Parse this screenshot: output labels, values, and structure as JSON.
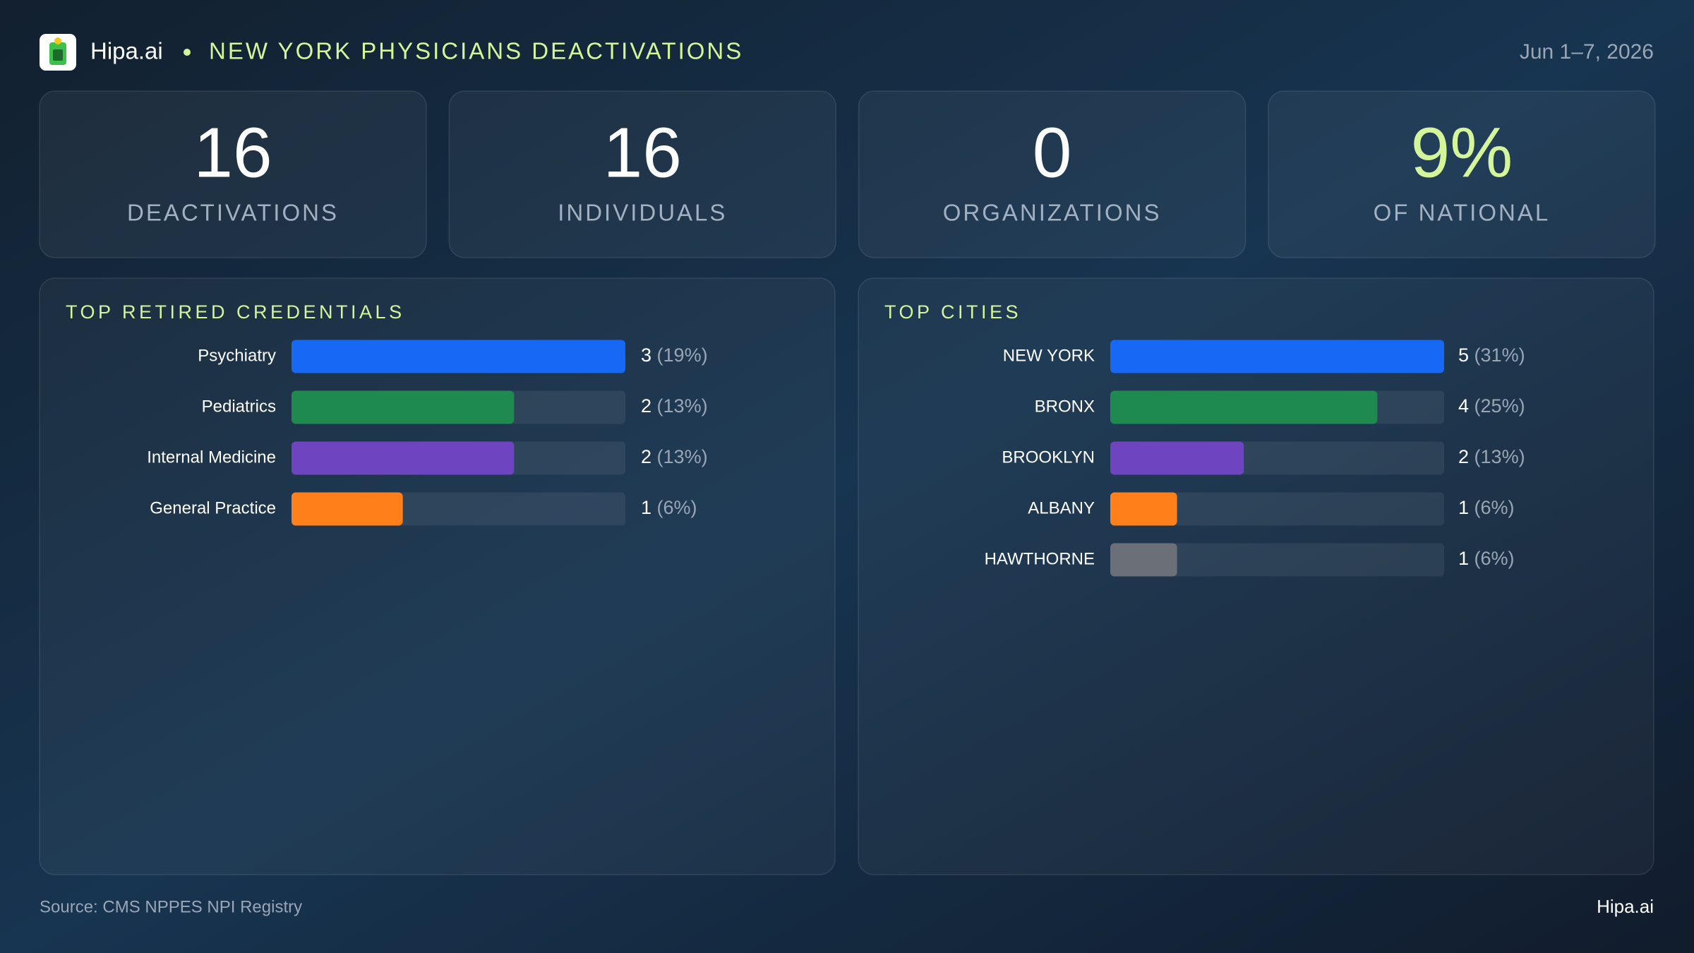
{
  "header": {
    "brand": "Hipa.ai",
    "title": "NEW YORK PHYSICIANS DEACTIVATIONS",
    "date": "Jun 1–7, 2026"
  },
  "kpis": [
    {
      "value": 16,
      "label": "DEACTIVATIONS",
      "color": "#ffffff"
    },
    {
      "value": 16,
      "label": "INDIVIDUALS",
      "color": "#ffffff"
    },
    {
      "value": 0,
      "label": "ORGANIZATIONS",
      "color": "#ffffff"
    },
    {
      "value": "9%",
      "label": "OF NATIONAL",
      "color": "#d4f59a"
    }
  ],
  "chart_data": [
    {
      "type": "bar",
      "title": "TOP RETIRED CREDENTIALS",
      "categories": [
        "Psychiatry",
        "Pediatrics",
        "Internal Medicine",
        "General Practice"
      ],
      "values": [
        3,
        2,
        2,
        1
      ],
      "share_labels": [
        "(19%)",
        "(13%)",
        "(13%)",
        "(6%)"
      ],
      "colors": [
        "#1668f5",
        "#1e8a4f",
        "#6e44c0",
        "#ff7f1a"
      ],
      "xlim": [
        0,
        3
      ]
    },
    {
      "type": "bar",
      "title": "TOP CITIES",
      "categories": [
        "NEW YORK",
        "BRONX",
        "BROOKLYN",
        "ALBANY",
        "HAWTHORNE"
      ],
      "values": [
        5,
        4,
        2,
        1,
        1
      ],
      "share_labels": [
        "(31%)",
        "(25%)",
        "(13%)",
        "(6%)",
        "(6%)"
      ],
      "colors": [
        "#1668f5",
        "#1e8a4f",
        "#6e44c0",
        "#ff7f1a",
        "#6b7078"
      ],
      "xlim": [
        0,
        5
      ]
    }
  ],
  "footer": {
    "source": "Source: CMS NPPES NPI Registry",
    "brand": "Hipa.ai"
  }
}
